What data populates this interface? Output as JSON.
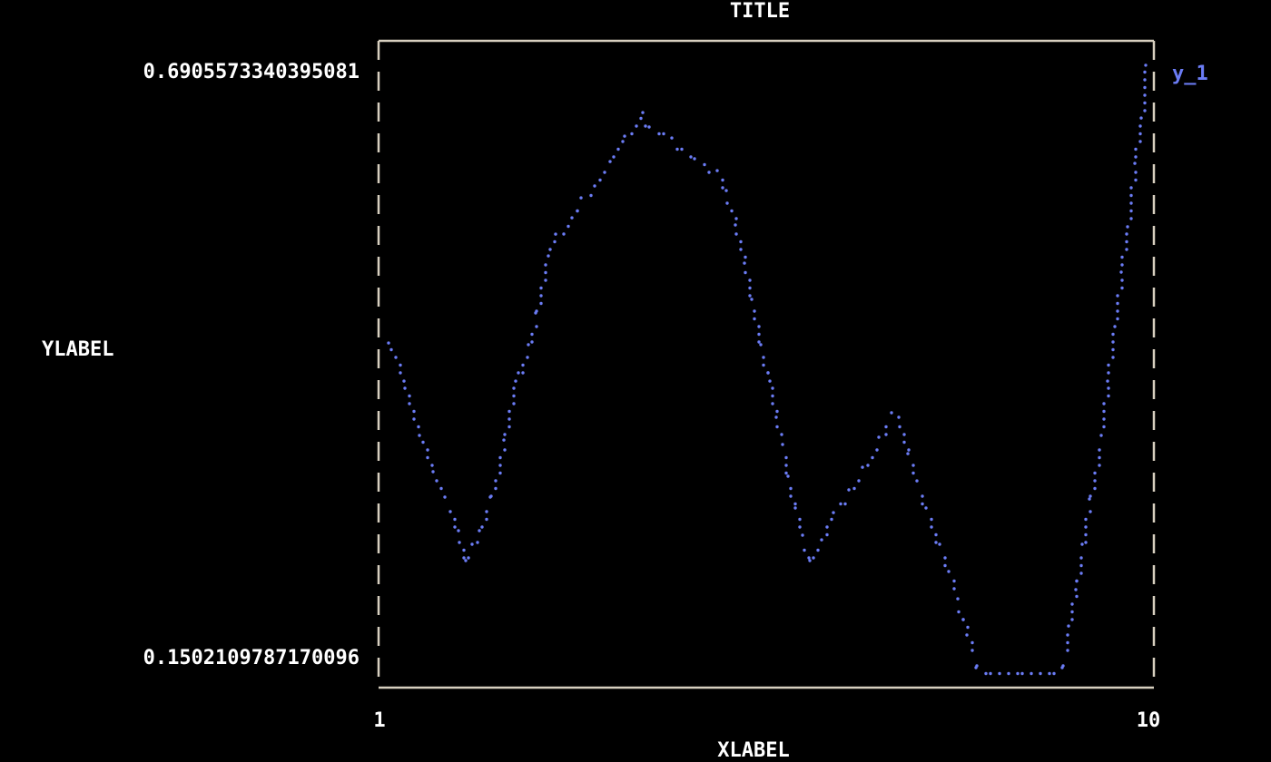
{
  "chart_data": {
    "type": "line",
    "title": "TITLE",
    "xlabel": "XLABEL",
    "ylabel": "YLABEL",
    "xlim": [
      1,
      10
    ],
    "ylim": [
      0.1502109787170096,
      0.6905573340395081
    ],
    "xticks": [
      "1",
      "10"
    ],
    "yticks": [
      "0.6905573340395081",
      "0.1502109787170096"
    ],
    "grid": false,
    "legend_placement": "right",
    "colors": {
      "series": "#6b7cf5",
      "frame": "#d8d0c0",
      "text": "#ffffff",
      "background": "#000000"
    },
    "series": [
      {
        "name": "y_1",
        "x": [
          1.106,
          1.285,
          1.465,
          1.623,
          1.761,
          1.919,
          2.004,
          2.077,
          2.162,
          2.289,
          2.447,
          2.585,
          2.732,
          2.817,
          2.965,
          3.049,
          3.239,
          3.345,
          3.504,
          3.683,
          3.852,
          4.063,
          4.137,
          4.401,
          4.665,
          4.93,
          5.035,
          5.141,
          5.246,
          5.331,
          5.437,
          5.542,
          5.616,
          5.69,
          5.754,
          5.838,
          5.923,
          6.007,
          6.144,
          6.282,
          6.461,
          6.62,
          6.81,
          6.958,
          7.042,
          7.148,
          7.254,
          7.359,
          7.518,
          7.623,
          7.729,
          7.835,
          7.94,
          8.944,
          9.018,
          9.102,
          9.176,
          9.261,
          9.398,
          9.472,
          9.556,
          9.63,
          9.704,
          9.789,
          9.863,
          9.915
        ],
        "y": [
          0.4415,
          0.4073,
          0.3585,
          0.326,
          0.3032,
          0.2731,
          0.2462,
          0.2609,
          0.2731,
          0.3032,
          0.3544,
          0.4073,
          0.4399,
          0.4684,
          0.5196,
          0.5391,
          0.5538,
          0.5717,
          0.5823,
          0.6042,
          0.627,
          0.6482,
          0.6352,
          0.6254,
          0.6067,
          0.5961,
          0.5782,
          0.5473,
          0.5131,
          0.4806,
          0.4399,
          0.4073,
          0.3748,
          0.3504,
          0.3219,
          0.2934,
          0.269,
          0.2462,
          0.2649,
          0.2893,
          0.3097,
          0.33,
          0.3569,
          0.3789,
          0.3748,
          0.3422,
          0.3178,
          0.2934,
          0.2609,
          0.2365,
          0.212,
          0.1795,
          0.1502,
          0.1502,
          0.1876,
          0.2202,
          0.2609,
          0.3015,
          0.3585,
          0.4073,
          0.4562,
          0.505,
          0.5457,
          0.6026,
          0.6433,
          0.6906
        ]
      }
    ]
  }
}
